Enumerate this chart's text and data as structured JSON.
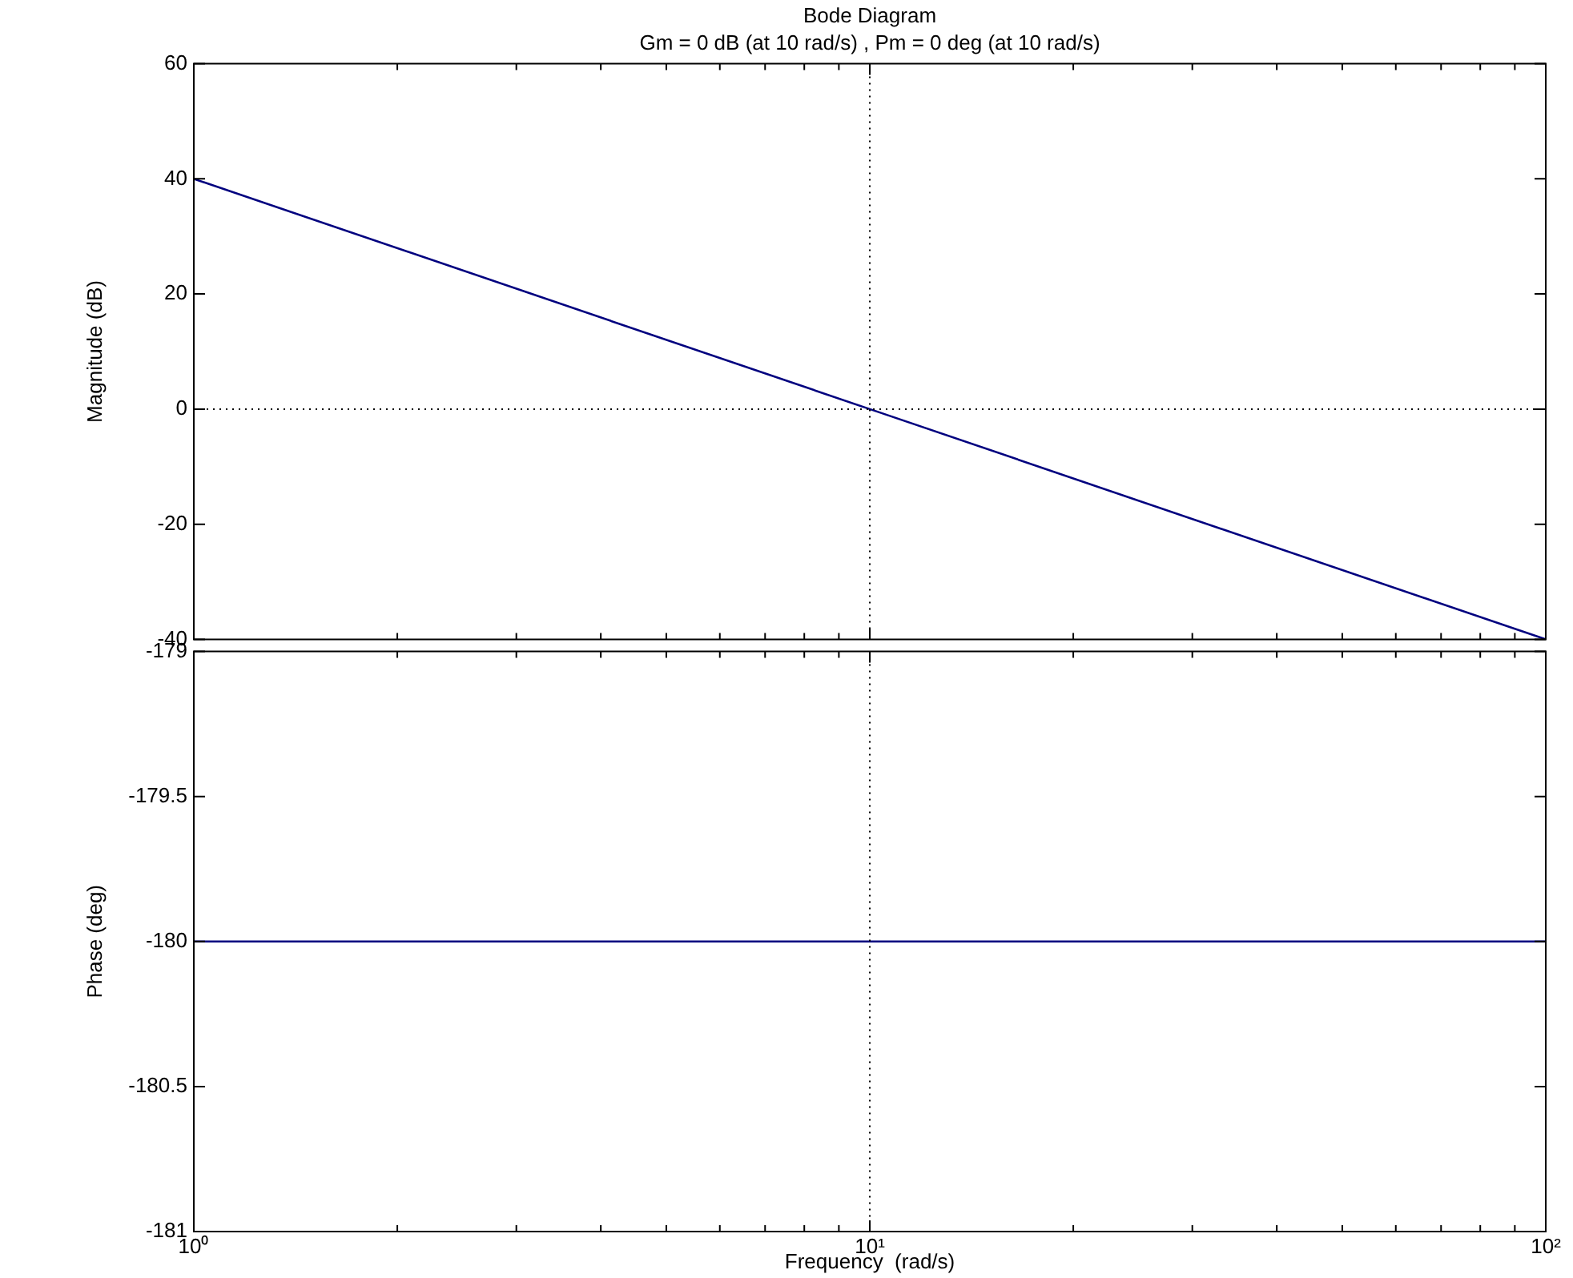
{
  "chart_data": [
    {
      "type": "line",
      "title": "Bode Diagram",
      "subtitle": "Gm = 0 dB (at 10 rad/s) ,  Pm = 0 deg (at 10 rad/s)",
      "ylabel": "Magnitude (dB)",
      "log": "x",
      "x": [
        1,
        10,
        100
      ],
      "series": [
        {
          "color": "#00007f",
          "values": [
            40,
            0,
            -40
          ]
        }
      ],
      "xlim": [
        1,
        100
      ],
      "ylim": [
        -40,
        60
      ],
      "xticks": [
        {
          "value": 1,
          "label": null
        },
        {
          "value": 2,
          "label": null
        },
        {
          "value": 3,
          "label": null
        },
        {
          "value": 4,
          "label": null
        },
        {
          "value": 5,
          "label": null
        },
        {
          "value": 6,
          "label": null
        },
        {
          "value": 7,
          "label": null
        },
        {
          "value": 8,
          "label": null
        },
        {
          "value": 9,
          "label": null
        },
        {
          "value": 10,
          "label": null
        },
        {
          "value": 20,
          "label": null
        },
        {
          "value": 30,
          "label": null
        },
        {
          "value": 40,
          "label": null
        },
        {
          "value": 50,
          "label": null
        },
        {
          "value": 60,
          "label": null
        },
        {
          "value": 70,
          "label": null
        },
        {
          "value": 80,
          "label": null
        },
        {
          "value": 90,
          "label": null
        },
        {
          "value": 100,
          "label": null
        }
      ],
      "yticks": [
        -40,
        -20,
        0,
        20,
        40,
        60
      ],
      "ref_lines": [
        {
          "axis": "y",
          "value": 0,
          "line_style": "dotted"
        },
        {
          "axis": "x",
          "value": 10,
          "line_style": "dotted"
        }
      ],
      "tick_labels": "y"
    },
    {
      "type": "line",
      "ylabel": "Phase (deg)",
      "xlabel": "Frequency  (rad/s)",
      "log": "x",
      "x": [
        1,
        10,
        100
      ],
      "series": [
        {
          "color": "#00007f",
          "values": [
            -180,
            -180,
            -180
          ]
        }
      ],
      "xlim": [
        1,
        100
      ],
      "ylim": [
        -181,
        -179
      ],
      "xticks": [
        {
          "value": 1,
          "label": "10⁰"
        },
        {
          "value": 2,
          "label": null
        },
        {
          "value": 3,
          "label": null
        },
        {
          "value": 4,
          "label": null
        },
        {
          "value": 5,
          "label": null
        },
        {
          "value": 6,
          "label": null
        },
        {
          "value": 7,
          "label": null
        },
        {
          "value": 8,
          "label": null
        },
        {
          "value": 9,
          "label": null
        },
        {
          "value": 10,
          "label": "10¹"
        },
        {
          "value": 20,
          "label": null
        },
        {
          "value": 30,
          "label": null
        },
        {
          "value": 40,
          "label": null
        },
        {
          "value": 50,
          "label": null
        },
        {
          "value": 60,
          "label": null
        },
        {
          "value": 70,
          "label": null
        },
        {
          "value": 80,
          "label": null
        },
        {
          "value": 90,
          "label": null
        },
        {
          "value": 100,
          "label": "10²"
        }
      ],
      "yticks": [
        -181,
        -180.5,
        -180,
        -179.5,
        -179
      ],
      "ref_lines": [
        {
          "axis": "x",
          "value": 10,
          "line_style": "dotted"
        }
      ]
    }
  ]
}
